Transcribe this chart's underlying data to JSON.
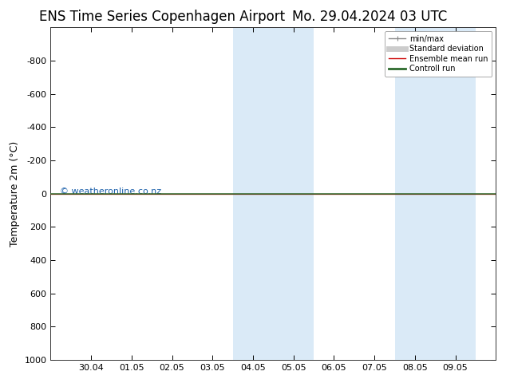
{
  "title_left": "ENS Time Series Copenhagen Airport",
  "title_right": "Mo. 29.04.2024 03 UTC",
  "ylabel": "Temperature 2m (°C)",
  "watermark": "© weatheronline.co.nz",
  "ylim": [
    -1000,
    1000
  ],
  "yticks": [
    -800,
    -600,
    -400,
    -200,
    0,
    200,
    400,
    600,
    800,
    1000
  ],
  "xtick_labels": [
    "30.04",
    "01.05",
    "02.05",
    "03.05",
    "04.05",
    "05.05",
    "06.05",
    "07.05",
    "08.05",
    "09.05"
  ],
  "shaded_pairs": [
    [
      4.5,
      5.5
    ],
    [
      5.5,
      6.5
    ],
    [
      8.5,
      9.5
    ],
    [
      9.5,
      10.5
    ]
  ],
  "xlim": [
    0.0,
    11.0
  ],
  "xtick_positions": [
    1.0,
    2.0,
    3.0,
    4.0,
    5.0,
    6.0,
    7.0,
    8.0,
    9.0,
    10.0
  ],
  "control_run_color": "#2d6a2d",
  "ensemble_mean_color": "#cc0000",
  "background_color": "#ffffff",
  "legend_items": [
    {
      "label": "min/max",
      "color": "#888888",
      "lw": 1
    },
    {
      "label": "Standard deviation",
      "color": "#cccccc",
      "lw": 5
    },
    {
      "label": "Ensemble mean run",
      "color": "#cc0000",
      "lw": 1
    },
    {
      "label": "Controll run",
      "color": "#2d6a2d",
      "lw": 2
    }
  ],
  "title_fontsize": 12,
  "axis_label_fontsize": 9,
  "tick_fontsize": 8,
  "watermark_color": "#1a5faa",
  "shaded_color": "#daeaf7"
}
